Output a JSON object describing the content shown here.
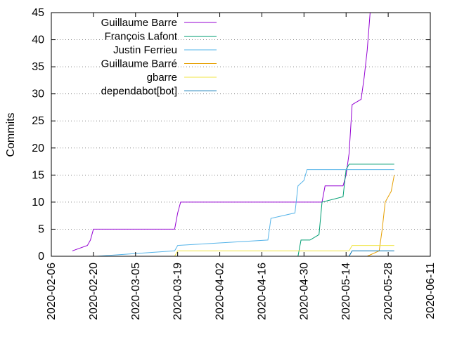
{
  "chart_data": {
    "type": "line",
    "ylabel": "Commits",
    "xlabel": "",
    "ylim": [
      0,
      45
    ],
    "xlim": [
      "2020-02-06",
      "2020-06-11"
    ],
    "yticks": [
      0,
      5,
      10,
      15,
      20,
      25,
      30,
      35,
      40,
      45
    ],
    "xticks": [
      "2020-02-06",
      "2020-02-20",
      "2020-03-05",
      "2020-03-19",
      "2020-04-02",
      "2020-04-16",
      "2020-04-30",
      "2020-05-14",
      "2020-05-28",
      "2020-06-11"
    ],
    "grid": "horizontal-dotted",
    "legend_position": "top-left",
    "series": [
      {
        "name": "Guillaume Barre",
        "color": "#9400d3",
        "points": [
          [
            "2020-02-13",
            1
          ],
          [
            "2020-02-18",
            2
          ],
          [
            "2020-02-19",
            3
          ],
          [
            "2020-02-20",
            5
          ],
          [
            "2020-03-18",
            5
          ],
          [
            "2020-03-19",
            8
          ],
          [
            "2020-03-20",
            10
          ],
          [
            "2020-05-06",
            10
          ],
          [
            "2020-05-07",
            13
          ],
          [
            "2020-05-13",
            13
          ],
          [
            "2020-05-14",
            15
          ],
          [
            "2020-05-15",
            19
          ],
          [
            "2020-05-16",
            28
          ],
          [
            "2020-05-19",
            29
          ],
          [
            "2020-05-20",
            33
          ],
          [
            "2020-05-21",
            38
          ],
          [
            "2020-05-22",
            45
          ]
        ]
      },
      {
        "name": "François Lafont",
        "color": "#009e73",
        "points": [
          [
            "2020-04-28",
            0
          ],
          [
            "2020-04-29",
            3
          ],
          [
            "2020-05-02",
            3
          ],
          [
            "2020-05-05",
            4
          ],
          [
            "2020-05-06",
            10
          ],
          [
            "2020-05-13",
            11
          ],
          [
            "2020-05-14",
            16
          ],
          [
            "2020-05-15",
            17
          ],
          [
            "2020-05-30",
            17
          ]
        ]
      },
      {
        "name": "Justin Ferrieu",
        "color": "#56b4e9",
        "points": [
          [
            "2020-02-21",
            0
          ],
          [
            "2020-03-18",
            1
          ],
          [
            "2020-03-19",
            2
          ],
          [
            "2020-04-18",
            3
          ],
          [
            "2020-04-19",
            7
          ],
          [
            "2020-04-27",
            8
          ],
          [
            "2020-04-28",
            13
          ],
          [
            "2020-04-30",
            14
          ],
          [
            "2020-05-01",
            16
          ],
          [
            "2020-05-30",
            16
          ]
        ]
      },
      {
        "name": "Guillaume Barré",
        "color": "#e69f00",
        "points": [
          [
            "2020-05-21",
            0
          ],
          [
            "2020-05-25",
            1
          ],
          [
            "2020-05-26",
            5
          ],
          [
            "2020-05-27",
            10
          ],
          [
            "2020-05-29",
            12
          ],
          [
            "2020-05-30",
            15
          ]
        ]
      },
      {
        "name": "gbarre",
        "color": "#f0e442",
        "points": [
          [
            "2020-03-18",
            0
          ],
          [
            "2020-03-19",
            1
          ],
          [
            "2020-05-15",
            1
          ],
          [
            "2020-05-16",
            2
          ],
          [
            "2020-05-30",
            2
          ]
        ]
      },
      {
        "name": "dependabot[bot]",
        "color": "#0072b2",
        "points": [
          [
            "2020-05-15",
            0
          ],
          [
            "2020-05-16",
            1
          ],
          [
            "2020-05-30",
            1
          ]
        ]
      }
    ]
  }
}
